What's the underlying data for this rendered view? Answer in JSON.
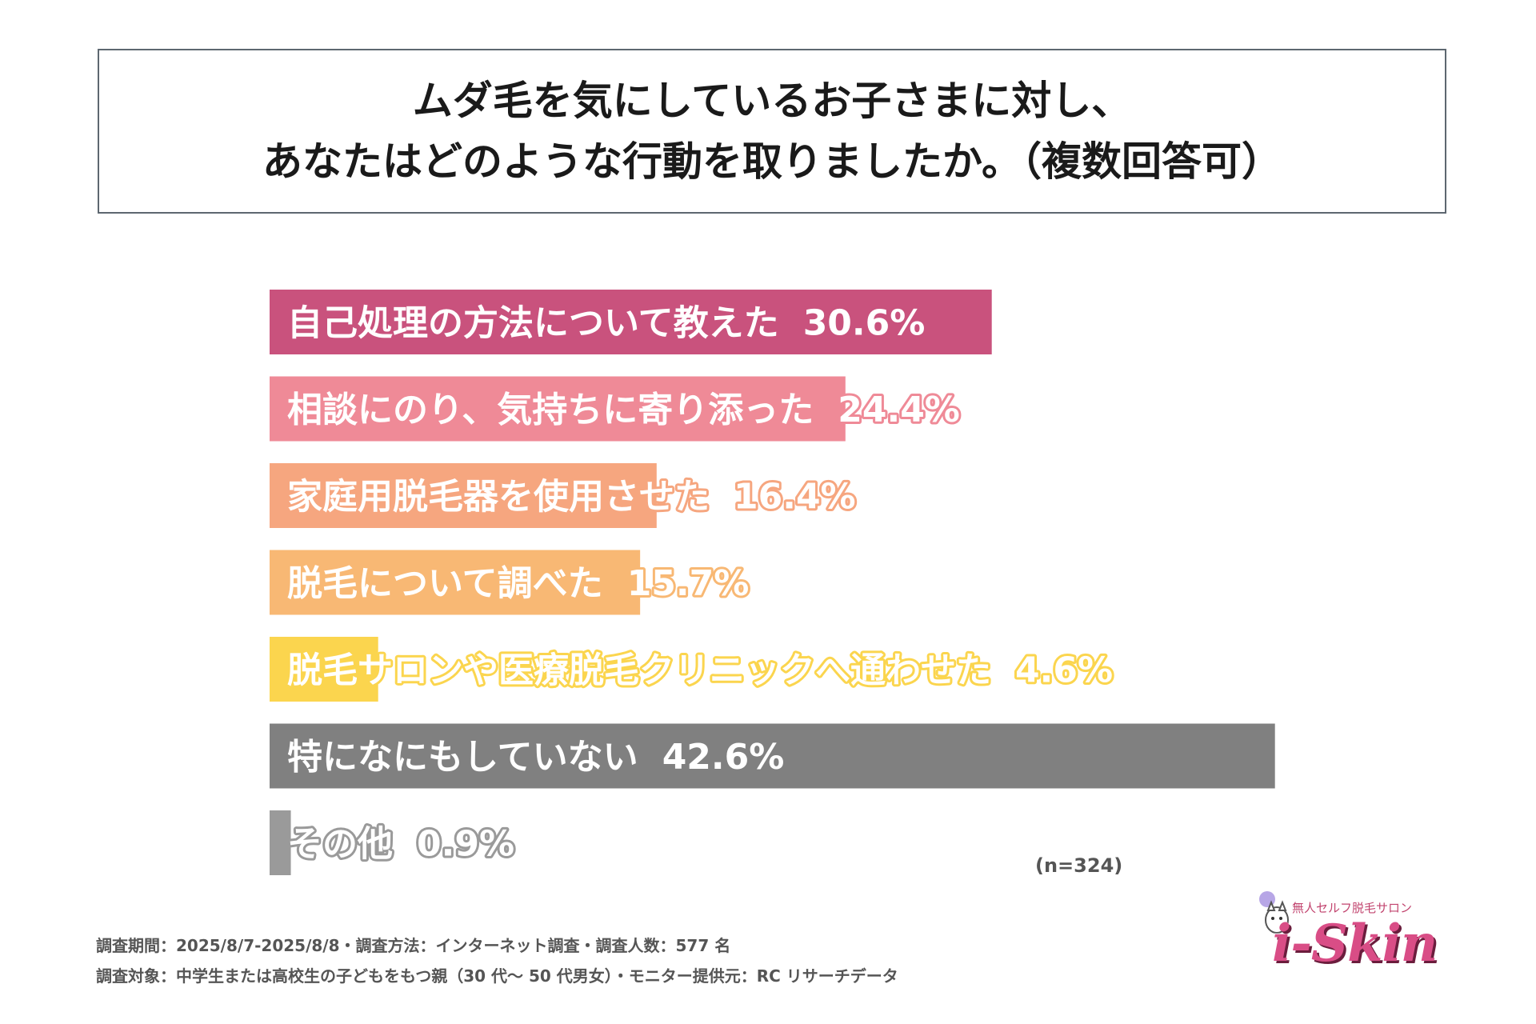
{
  "title": {
    "line1": "ムダ毛を気にしているお子さまに対し、",
    "line2": "あなたはどのような行動を取りましたか。（複数回答可）"
  },
  "chart_data": {
    "type": "bar",
    "orientation": "horizontal",
    "xlim": [
      0,
      50
    ],
    "categories": [
      "自己処理の方法について教えた",
      "相談にのり、気持ちに寄り添った",
      "家庭用脱毛器を使用させた",
      "脱毛について調べた",
      "脱毛サロンや医療脱毛クリニックへ通わせた",
      "特になにもしていない",
      "その他"
    ],
    "values": [
      30.6,
      24.4,
      16.4,
      15.7,
      4.6,
      42.6,
      0.9
    ],
    "value_labels": [
      "30.6%",
      "24.4%",
      "16.4%",
      "15.7%",
      "4.6%",
      "42.6%",
      "0.9%"
    ],
    "colors": [
      "#c9527d",
      "#ef8a97",
      "#f6a67f",
      "#f8b874",
      "#fbd54e",
      "#808080",
      "#9a9a9a"
    ]
  },
  "sample_note": "(n=324)",
  "footer": {
    "line1": "調査期間：2025/8/7-2025/8/8・調査方法：インターネット調査・調査人数：577 名",
    "line2": "調査対象：中学生または高校生の子どもをもつ親（30 代～ 50 代男女）・モニター提供元：RC リサーチデータ"
  },
  "logo": {
    "tagline": "無人セルフ脱毛サロン",
    "name": "i-Skin"
  }
}
